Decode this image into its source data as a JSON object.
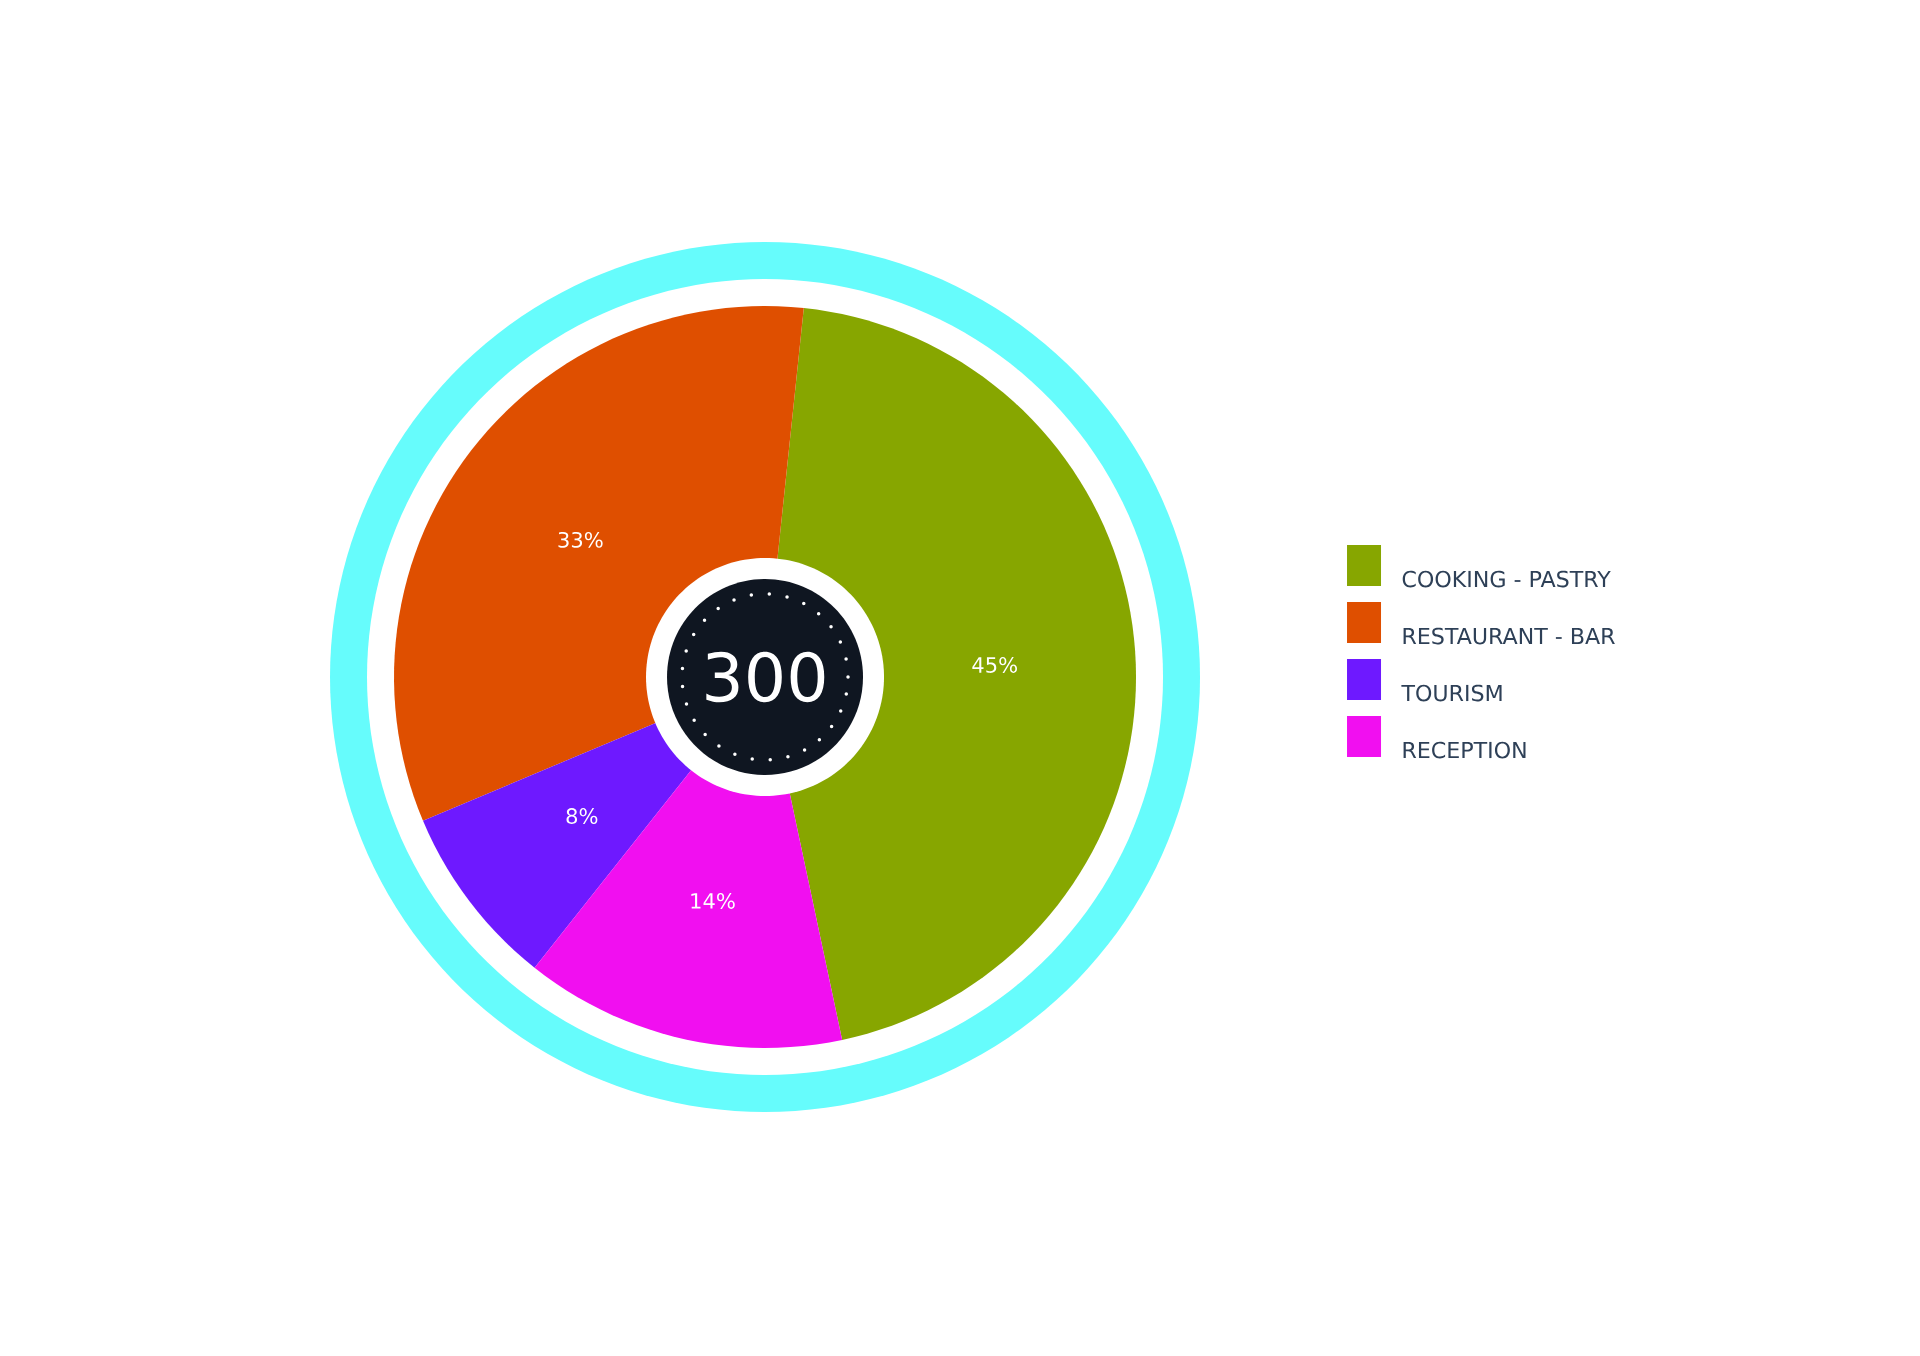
{
  "chart_data": {
    "type": "donut",
    "categories": [
      "COOKING - PASTRY",
      "RESTAURANT - BAR",
      "TOURISM",
      "RECEPTION"
    ],
    "values": [
      45,
      33,
      8,
      14
    ],
    "colors": [
      "#87a600",
      "#df4f00",
      "#6e19ff",
      "#f10ff0"
    ],
    "value_labels": [
      "45%",
      "33%",
      "8%",
      "14%"
    ],
    "annotations": [
      "300"
    ],
    "legend": "right"
  }
}
